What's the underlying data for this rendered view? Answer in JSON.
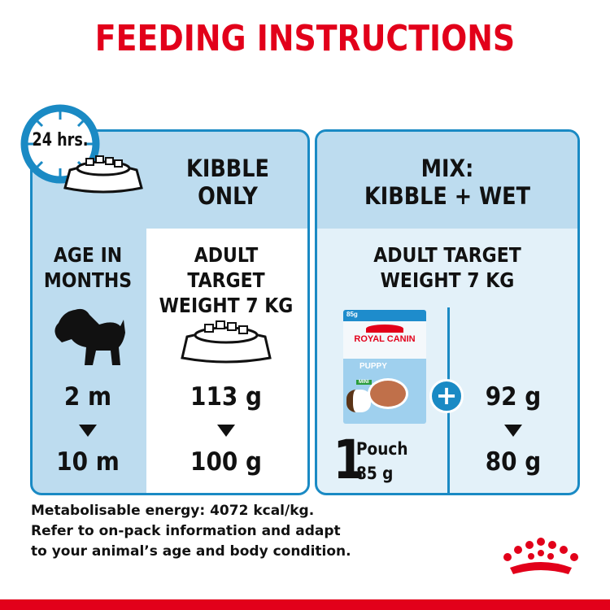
{
  "title": "FEEDING INSTRUCTIONS",
  "clock_label": "24 hrs.",
  "kibble_panel": {
    "heading_line1": "KIBBLE",
    "heading_line2": "ONLY",
    "age_header_line1": "AGE IN",
    "age_header_line2": "MONTHS",
    "target_line1": "ADULT TARGET",
    "target_line2": "WEIGHT 7 KG",
    "age_start": "2 m",
    "age_end": "10 m",
    "amount_start": "113 g",
    "amount_end": "100 g"
  },
  "mix_panel": {
    "heading_line1": "MIX:",
    "heading_line2": "KIBBLE + WET",
    "target_line1": "ADULT TARGET",
    "target_line2": "WEIGHT 7 KG",
    "pouch_count": "1",
    "pouch_label": "Pouch",
    "pouch_weight": "85 g",
    "pouch_product": {
      "weight": "85g",
      "brand": "ROYAL CANIN",
      "name": "PUPPY",
      "variant": "MINI"
    },
    "amount_start": "92 g",
    "amount_end": "80 g"
  },
  "footer": {
    "line1": "Metabolisable energy: 4072 kcal/kg.",
    "line2": "Refer to on-pack information and adapt",
    "line3": "to your animal’s age and body condition."
  },
  "colors": {
    "brand_red": "#e2001a",
    "accent_blue": "#1a8ac4",
    "header_blue": "#bddcef",
    "light_blue": "#e3f1f9"
  }
}
